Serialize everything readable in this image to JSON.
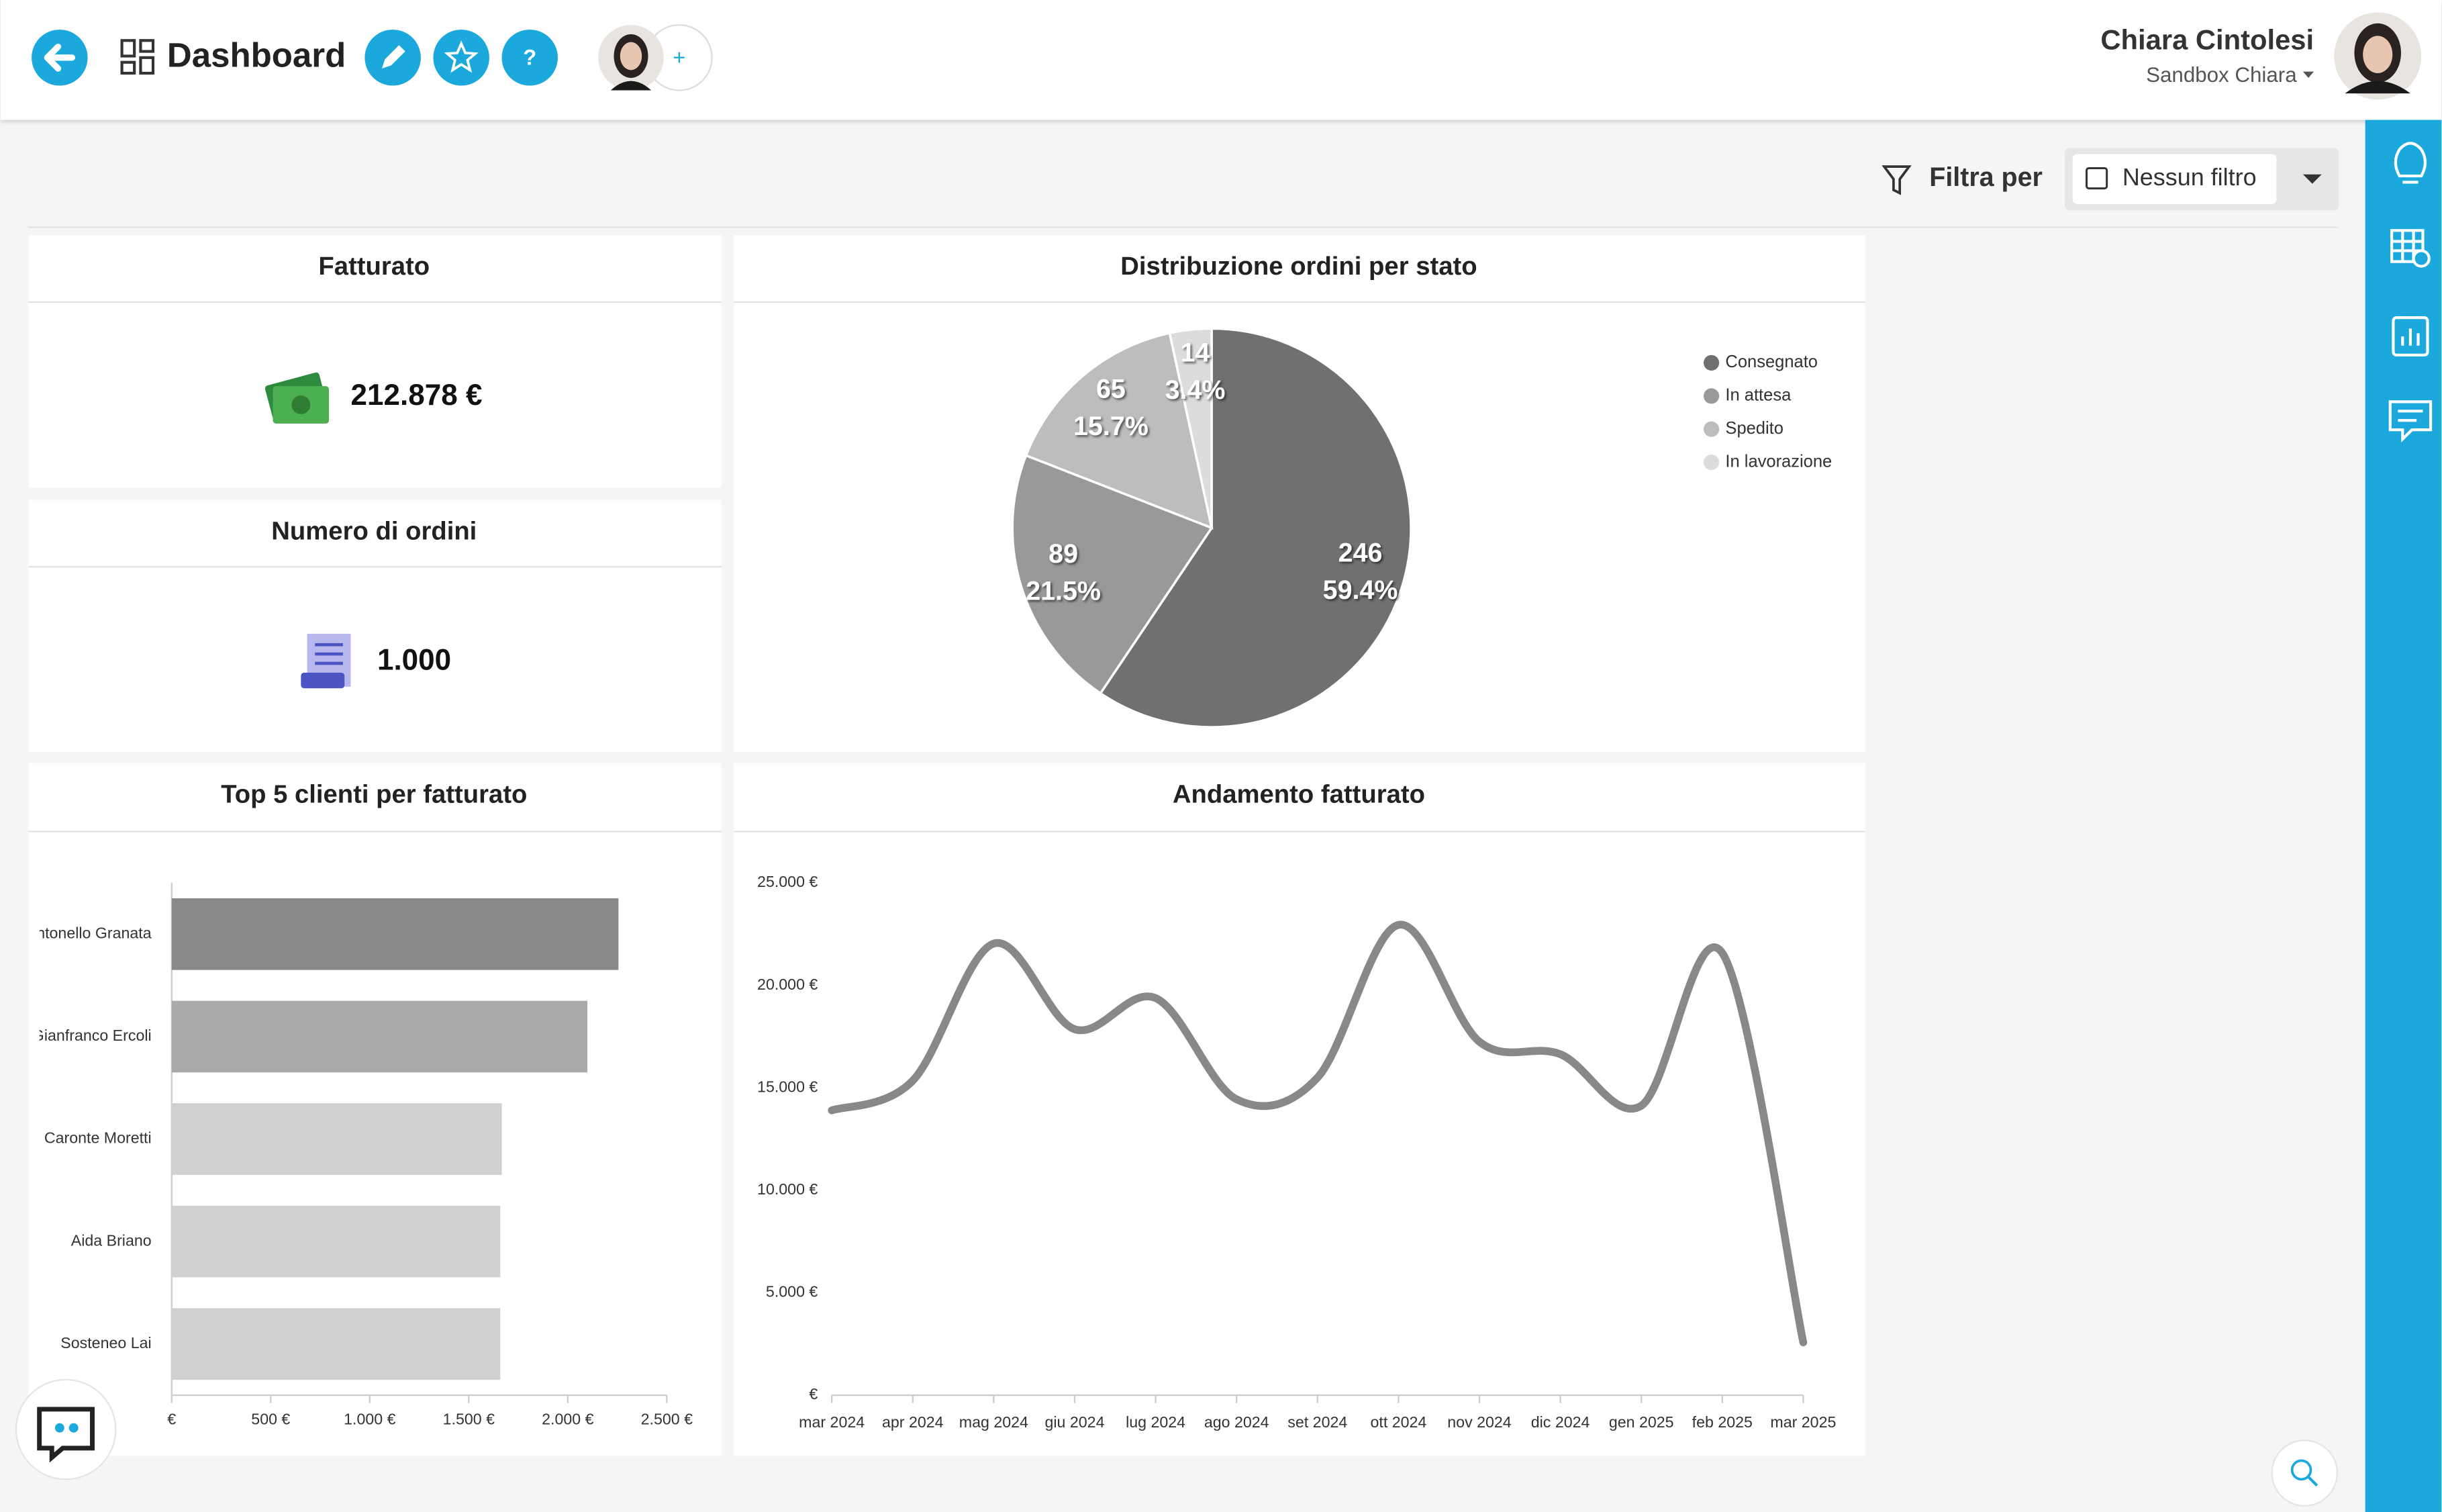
{
  "header": {
    "title": "Dashboard",
    "user_name": "Chiara Cintolesi",
    "workspace": "Sandbox Chiara"
  },
  "filter": {
    "label": "Filtra per",
    "value": "Nessun filtro"
  },
  "kpis": [
    {
      "title": "Fatturato",
      "value": "212.878 €"
    },
    {
      "title": "Numero di ordini",
      "value": "1.000"
    }
  ],
  "chart_data": [
    {
      "type": "pie",
      "title": "Distribuzione ordini per stato",
      "categories": [
        "Consegnato",
        "In attesa",
        "Spedito",
        "In lavorazione"
      ],
      "values": [
        246,
        89,
        65,
        14
      ],
      "percent_labels": [
        "59.4%",
        "21.5%",
        "15.7%",
        "3.4%"
      ],
      "colors": [
        "#707070",
        "#999999",
        "#bdbdbd",
        "#dcdcdc"
      ],
      "legend": "right"
    },
    {
      "type": "hbar",
      "title": "Top 5 clienti per fatturato",
      "categories": [
        "Antonello Granata",
        "Gianfranco Ercoli",
        "Caronte Moretti",
        "Aida Briano",
        "Sosteneo Lai"
      ],
      "values": [
        2256,
        2099,
        1667,
        1659,
        1659
      ],
      "colors": [
        "#888888",
        "#aaaaaa",
        "#d0d0d0",
        "#d0d0d0",
        "#d0d0d0"
      ],
      "xlim": [
        0,
        2500
      ],
      "xticks": [
        {
          "value": 0,
          "label": "€"
        },
        {
          "value": 500,
          "label": "500 €"
        },
        {
          "value": 1000,
          "label": "1.000 €"
        },
        {
          "value": 1500,
          "label": "1.500 €"
        },
        {
          "value": 2000,
          "label": "2.000 €"
        },
        {
          "value": 2500,
          "label": "2.500 €"
        }
      ]
    },
    {
      "type": "line",
      "title": "Andamento fatturato",
      "categories": [
        "mar 2024",
        "apr 2024",
        "mag 2024",
        "giu 2024",
        "lug 2024",
        "ago 2024",
        "set 2024",
        "ott 2024",
        "nov 2024",
        "dic 2024",
        "gen 2025",
        "feb 2025",
        "mar 2025"
      ],
      "values": [
        13900,
        15350,
        22040,
        17860,
        19380,
        14440,
        15500,
        22950,
        17250,
        16640,
        14130,
        21580,
        2580
      ],
      "color": "#888888",
      "ylim": [
        0,
        25000
      ],
      "yticks": [
        {
          "value": 0,
          "label": "€"
        },
        {
          "value": 5000,
          "label": "5.000 €"
        },
        {
          "value": 10000,
          "label": "10.000 €"
        },
        {
          "value": 15000,
          "label": "15.000 €"
        },
        {
          "value": 20000,
          "label": "20.000 €"
        },
        {
          "value": 25000,
          "label": "25.000 €"
        }
      ]
    }
  ]
}
